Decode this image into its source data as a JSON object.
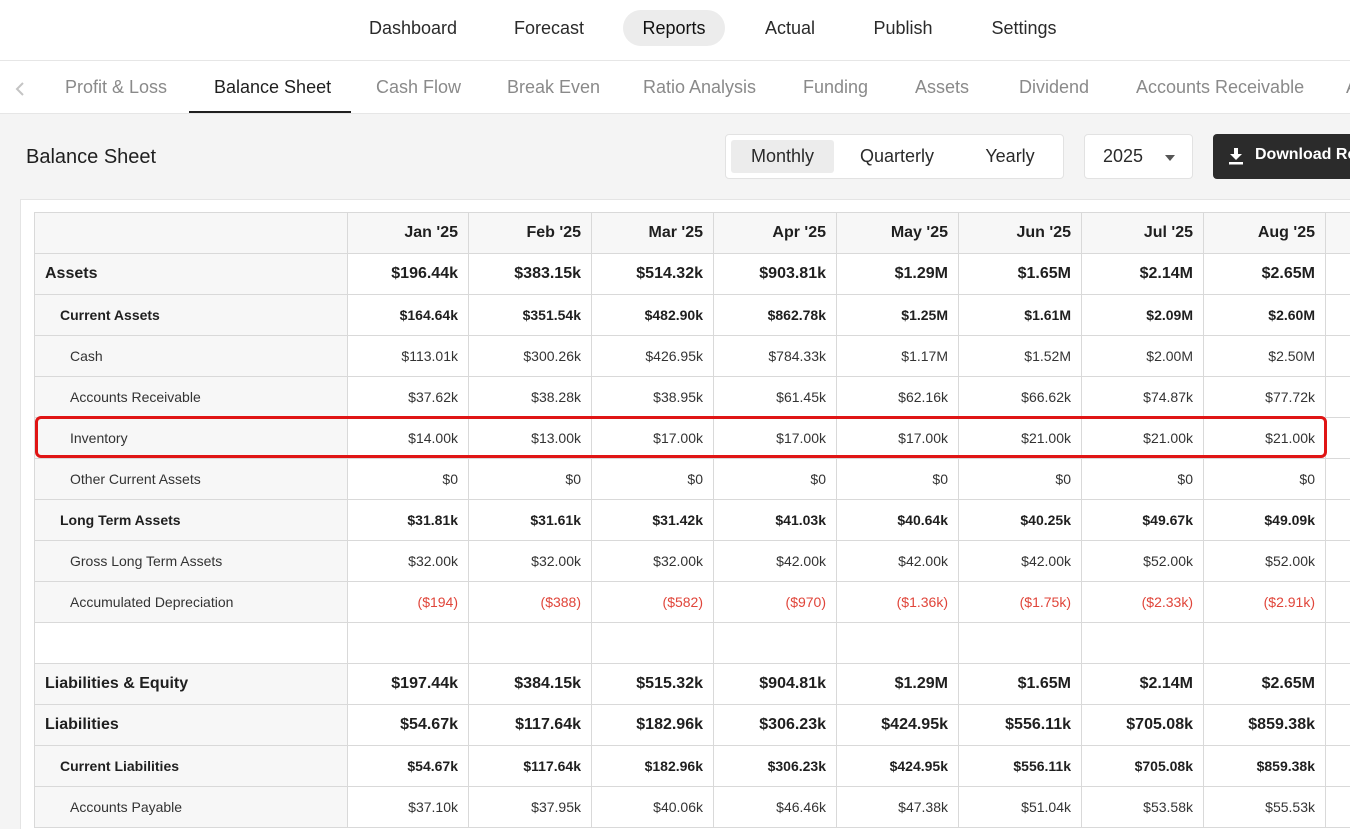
{
  "top_nav": {
    "items": [
      {
        "label": "Dashboard",
        "active": false
      },
      {
        "label": "Forecast",
        "active": false
      },
      {
        "label": "Reports",
        "active": true
      },
      {
        "label": "Actual",
        "active": false
      },
      {
        "label": "Publish",
        "active": false
      },
      {
        "label": "Settings",
        "active": false
      }
    ]
  },
  "report_tabs": {
    "prev_icon": "chevron-left-icon",
    "items": [
      {
        "label": "Profit & Loss",
        "active": false
      },
      {
        "label": "Balance Sheet",
        "active": true
      },
      {
        "label": "Cash Flow",
        "active": false
      },
      {
        "label": "Break Even",
        "active": false
      },
      {
        "label": "Ratio Analysis",
        "active": false
      },
      {
        "label": "Funding",
        "active": false
      },
      {
        "label": "Assets",
        "active": false
      },
      {
        "label": "Dividend",
        "active": false
      },
      {
        "label": "Accounts Receivable",
        "active": false
      },
      {
        "label": "A",
        "active": false
      }
    ]
  },
  "header": {
    "title": "Balance Sheet",
    "period_toggle": {
      "options": [
        "Monthly",
        "Quarterly",
        "Yearly"
      ],
      "selected": "Monthly"
    },
    "year_select": {
      "value": "2025",
      "icon": "caret-down-icon"
    },
    "download_button": {
      "label": "Download Re",
      "icon": "download-icon"
    }
  },
  "colors": {
    "negative": "#e0453a",
    "highlight": "#e01515",
    "button_bg": "#2b2b2b",
    "active_nav_bg": "#ececec"
  },
  "table": {
    "columns": [
      "Jan '25",
      "Feb '25",
      "Mar '25",
      "Apr '25",
      "May '25",
      "Jun '25",
      "Jul '25",
      "Aug '25"
    ],
    "rows": [
      {
        "label": "Assets",
        "level": 0,
        "values": [
          "$196.44k",
          "$383.15k",
          "$514.32k",
          "$903.81k",
          "$1.29M",
          "$1.65M",
          "$2.14M",
          "$2.65M"
        ]
      },
      {
        "label": "Current Assets",
        "level": 1,
        "values": [
          "$164.64k",
          "$351.54k",
          "$482.90k",
          "$862.78k",
          "$1.25M",
          "$1.61M",
          "$2.09M",
          "$2.60M"
        ]
      },
      {
        "label": "Cash",
        "level": 2,
        "values": [
          "$113.01k",
          "$300.26k",
          "$426.95k",
          "$784.33k",
          "$1.17M",
          "$1.52M",
          "$2.00M",
          "$2.50M"
        ]
      },
      {
        "label": "Accounts Receivable",
        "level": 2,
        "values": [
          "$37.62k",
          "$38.28k",
          "$38.95k",
          "$61.45k",
          "$62.16k",
          "$66.62k",
          "$74.87k",
          "$77.72k"
        ]
      },
      {
        "label": "Inventory",
        "level": 2,
        "highlighted": true,
        "values": [
          "$14.00k",
          "$13.00k",
          "$17.00k",
          "$17.00k",
          "$17.00k",
          "$21.00k",
          "$21.00k",
          "$21.00k"
        ]
      },
      {
        "label": "Other Current Assets",
        "level": 2,
        "values": [
          "$0",
          "$0",
          "$0",
          "$0",
          "$0",
          "$0",
          "$0",
          "$0"
        ]
      },
      {
        "label": "Long Term Assets",
        "level": 1,
        "values": [
          "$31.81k",
          "$31.61k",
          "$31.42k",
          "$41.03k",
          "$40.64k",
          "$40.25k",
          "$49.67k",
          "$49.09k"
        ]
      },
      {
        "label": "Gross Long Term Assets",
        "level": 2,
        "values": [
          "$32.00k",
          "$32.00k",
          "$32.00k",
          "$42.00k",
          "$42.00k",
          "$42.00k",
          "$52.00k",
          "$52.00k"
        ]
      },
      {
        "label": "Accumulated Depreciation",
        "level": 2,
        "negative": true,
        "values": [
          "($194)",
          "($388)",
          "($582)",
          "($970)",
          "($1.36k)",
          "($1.75k)",
          "($2.33k)",
          "($2.91k)"
        ]
      },
      {
        "label": "",
        "level": -1,
        "values": [
          "",
          "",
          "",
          "",
          "",
          "",
          "",
          ""
        ]
      },
      {
        "label": "Liabilities & Equity",
        "level": 0,
        "values": [
          "$197.44k",
          "$384.15k",
          "$515.32k",
          "$904.81k",
          "$1.29M",
          "$1.65M",
          "$2.14M",
          "$2.65M"
        ]
      },
      {
        "label": "Liabilities",
        "level": 0,
        "values": [
          "$54.67k",
          "$117.64k",
          "$182.96k",
          "$306.23k",
          "$424.95k",
          "$556.11k",
          "$705.08k",
          "$859.38k"
        ]
      },
      {
        "label": "Current Liabilities",
        "level": 1,
        "values": [
          "$54.67k",
          "$117.64k",
          "$182.96k",
          "$306.23k",
          "$424.95k",
          "$556.11k",
          "$705.08k",
          "$859.38k"
        ]
      },
      {
        "label": "Accounts Payable",
        "level": 2,
        "values": [
          "$37.10k",
          "$37.95k",
          "$40.06k",
          "$46.46k",
          "$47.38k",
          "$51.04k",
          "$53.58k",
          "$55.53k"
        ]
      }
    ]
  }
}
